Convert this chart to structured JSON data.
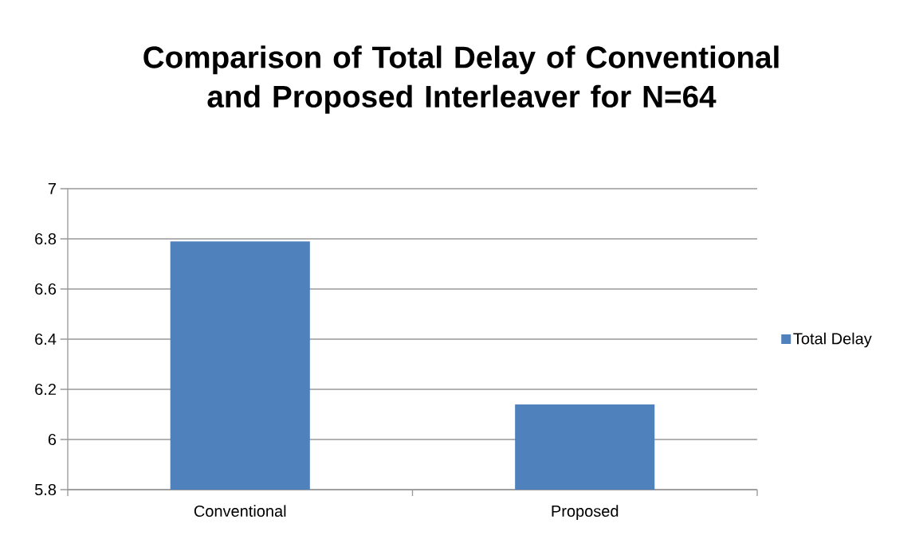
{
  "chart_data": {
    "type": "bar",
    "title": "Comparison of Total Delay of Conventional and Proposed Interleaver for N=64",
    "categories": [
      "Conventional",
      "Proposed"
    ],
    "series": [
      {
        "name": "Total Delay",
        "color": "#4f81bd",
        "values": [
          6.79,
          6.14
        ]
      }
    ],
    "ylim": [
      5.8,
      7
    ],
    "yticks": [
      5.8,
      6,
      6.2,
      6.4,
      6.6,
      6.8,
      7
    ],
    "grid": "y",
    "legend": "right"
  }
}
